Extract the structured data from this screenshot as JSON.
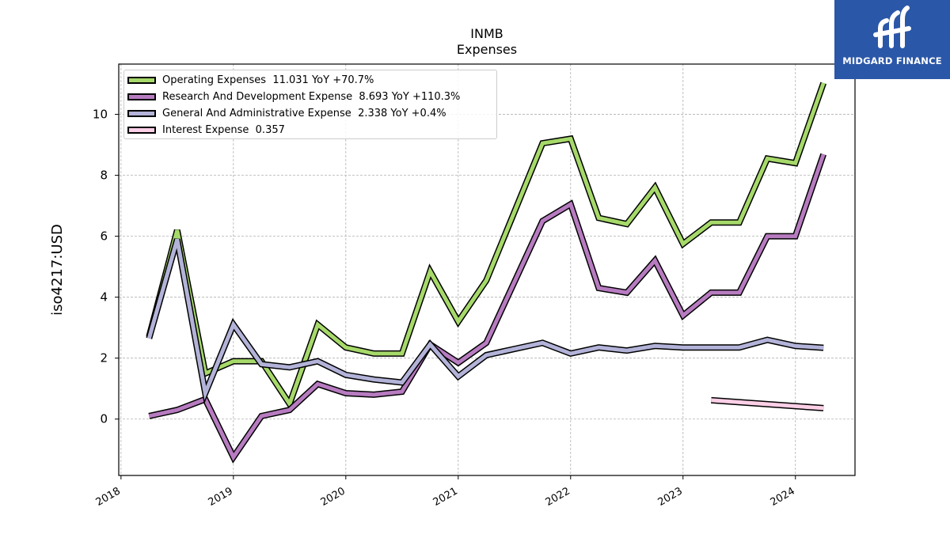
{
  "chart_data": {
    "type": "line",
    "title": "INMB",
    "subtitle": "Expenses",
    "ylabel": "iso4217:USD",
    "xlabel": "",
    "xlim": [
      2017.98,
      2024.53
    ],
    "ylim": [
      -1.85,
      11.65
    ],
    "yticks": [
      0,
      2,
      4,
      6,
      8,
      10
    ],
    "xticks": [
      2018,
      2019,
      2020,
      2021,
      2022,
      2023,
      2024
    ],
    "xtick_labels": [
      "2018",
      "2019",
      "2020",
      "2021",
      "2022",
      "2023",
      "2024"
    ],
    "grid": true,
    "legend_position": "top-left",
    "series": [
      {
        "name": "Operating Expenses",
        "legend_label": "Operating Expenses  11.031 YoY +70.7%",
        "color": "#a6d96a",
        "x": [
          2018.25,
          2018.5,
          2018.75,
          2019.0,
          2019.25,
          2019.5,
          2019.75,
          2020.0,
          2020.25,
          2020.5,
          2020.75,
          2021.0,
          2021.25,
          2021.5,
          2021.75,
          2022.0,
          2022.25,
          2022.5,
          2022.75,
          2023.0,
          2023.25,
          2023.5,
          2023.75,
          2024.0,
          2024.25
        ],
        "y": [
          2.7,
          6.2,
          1.5,
          1.9,
          1.9,
          0.5,
          3.1,
          2.35,
          2.15,
          2.15,
          4.85,
          3.2,
          4.55,
          6.8,
          9.05,
          9.2,
          6.6,
          6.4,
          7.6,
          5.75,
          6.45,
          6.45,
          8.55,
          8.4,
          11.03
        ]
      },
      {
        "name": "Research And Development Expense",
        "legend_label": "Research And Development Expense  8.693 YoY +110.3%",
        "color": "#b77bc0",
        "x": [
          2018.25,
          2018.5,
          2018.75,
          2019.0,
          2019.25,
          2019.5,
          2019.75,
          2020.0,
          2020.25,
          2020.5,
          2020.75,
          2021.0,
          2021.25,
          2021.5,
          2021.75,
          2022.0,
          2022.25,
          2022.5,
          2022.75,
          2023.0,
          2023.25,
          2023.5,
          2023.75,
          2024.0,
          2024.25
        ],
        "y": [
          0.1,
          0.3,
          0.65,
          -1.25,
          0.1,
          0.3,
          1.15,
          0.85,
          0.8,
          0.9,
          2.45,
          1.85,
          2.5,
          4.5,
          6.5,
          7.05,
          4.3,
          4.15,
          5.2,
          3.4,
          4.15,
          4.15,
          6.0,
          6.0,
          8.69
        ]
      },
      {
        "name": "General And Administrative Expense",
        "legend_label": "General And Administrative Expense  2.338 YoY +0.4%",
        "color": "#b3b3d9",
        "x": [
          2018.25,
          2018.5,
          2018.75,
          2019.0,
          2019.25,
          2019.5,
          2019.75,
          2020.0,
          2020.25,
          2020.5,
          2020.75,
          2021.0,
          2021.25,
          2021.5,
          2021.75,
          2022.0,
          2022.25,
          2022.5,
          2022.75,
          2023.0,
          2023.25,
          2023.5,
          2023.75,
          2024.0,
          2024.25
        ],
        "y": [
          2.65,
          5.9,
          0.85,
          3.1,
          1.8,
          1.7,
          1.9,
          1.45,
          1.3,
          1.2,
          2.45,
          1.4,
          2.1,
          2.3,
          2.5,
          2.15,
          2.35,
          2.25,
          2.4,
          2.35,
          2.35,
          2.35,
          2.6,
          2.4,
          2.34
        ]
      },
      {
        "name": "Interest Expense",
        "legend_label": "Interest Expense  0.357",
        "color": "#fbcfe6",
        "x": [
          2023.25,
          2024.25
        ],
        "y": [
          0.62,
          0.36
        ]
      }
    ]
  },
  "branding": {
    "logo_text": "MIDGARD FINANCE",
    "logo_color": "#2b57a8"
  }
}
